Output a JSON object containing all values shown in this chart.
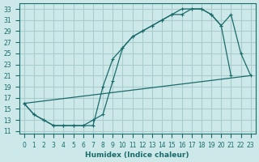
{
  "xlabel": "Humidex (Indice chaleur)",
  "bg_color": "#cce8e8",
  "grid_color": "#aacccc",
  "line_color": "#1a6b6b",
  "xlim": [
    -0.5,
    23.5
  ],
  "ylim": [
    10.5,
    34
  ],
  "xticks": [
    0,
    1,
    2,
    3,
    4,
    5,
    6,
    7,
    8,
    9,
    10,
    11,
    12,
    13,
    14,
    15,
    16,
    17,
    18,
    19,
    20,
    21,
    22,
    23
  ],
  "yticks": [
    11,
    13,
    15,
    17,
    19,
    21,
    23,
    25,
    27,
    29,
    31,
    33
  ],
  "curve1_x": [
    0,
    1,
    2,
    3,
    4,
    5,
    6,
    7,
    8,
    9,
    10,
    11,
    12,
    13,
    14,
    15,
    16,
    17,
    18,
    19,
    20,
    21
  ],
  "curve1_y": [
    16,
    14,
    13,
    12,
    12,
    12,
    12,
    13,
    14,
    20,
    26,
    28,
    29,
    30,
    31,
    32,
    32,
    33,
    33,
    32,
    30,
    21
  ],
  "curve2_x": [
    0,
    1,
    2,
    3,
    4,
    5,
    6,
    7,
    8,
    9,
    10,
    11,
    12,
    13,
    14,
    15,
    16,
    17,
    18,
    19,
    20,
    21,
    22,
    23
  ],
  "curve2_y": [
    16,
    14,
    13,
    12,
    12,
    12,
    12,
    12,
    19,
    24,
    26,
    28,
    29,
    30,
    31,
    32,
    33,
    33,
    33,
    32,
    30,
    32,
    25,
    21
  ],
  "curve3_x": [
    0,
    23
  ],
  "curve3_y": [
    16,
    21
  ]
}
